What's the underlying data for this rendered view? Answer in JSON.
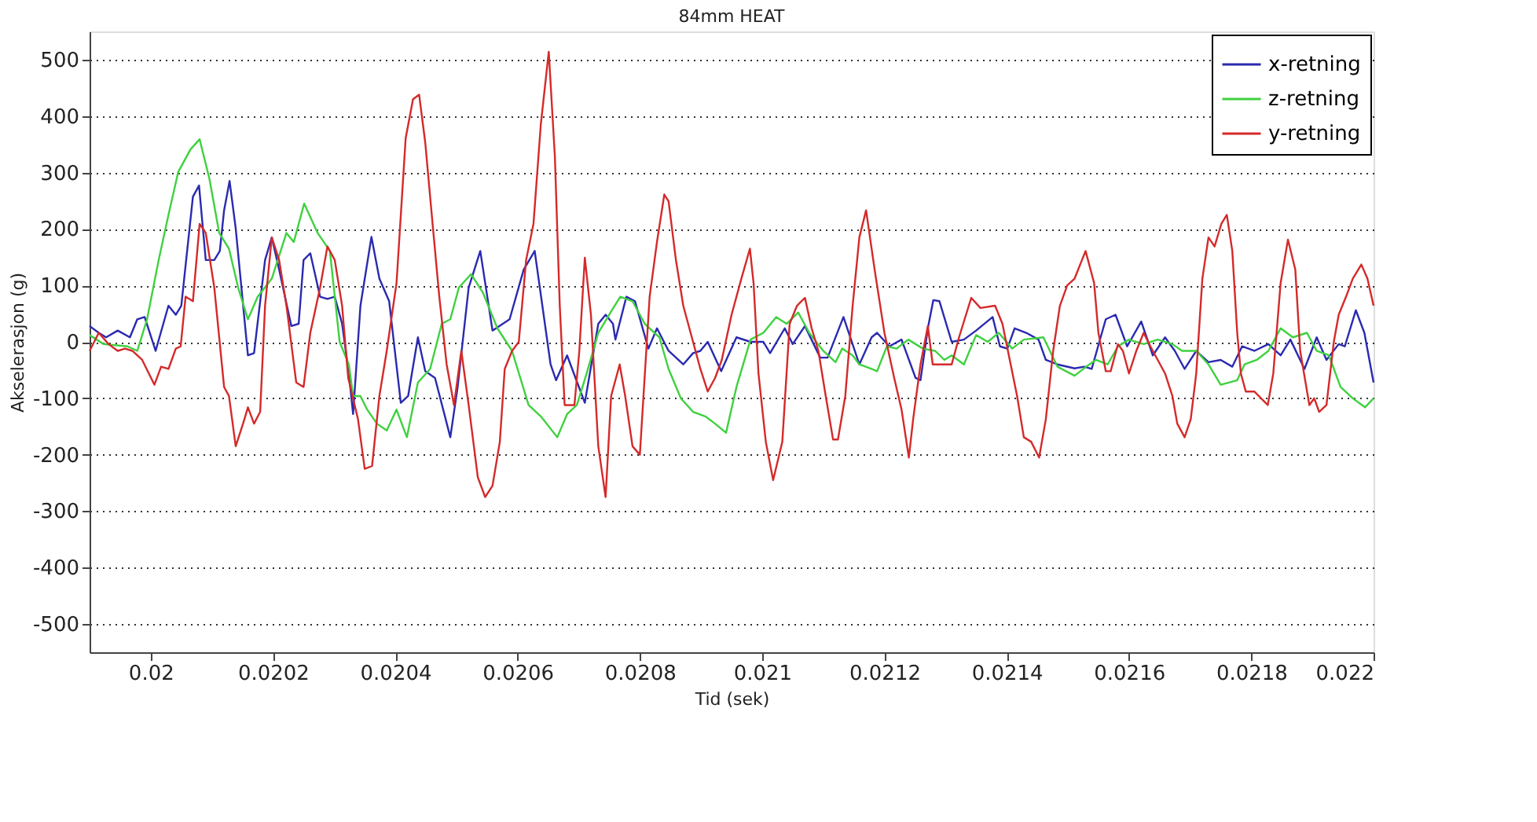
{
  "chart_data": {
    "type": "line",
    "title": "84mm HEAT",
    "xlabel": "Tid (sek)",
    "ylabel": "Akselerasjon (g)",
    "xlim": [
      0.0199,
      0.022
    ],
    "ylim": [
      -550,
      550
    ],
    "xticks": [
      0.02,
      0.0202,
      0.0204,
      0.0206,
      0.0208,
      0.021,
      0.0212,
      0.0214,
      0.0216,
      0.0218,
      0.022
    ],
    "yticks": [
      -500,
      -400,
      -300,
      -200,
      -100,
      0,
      100,
      200,
      300,
      400,
      500
    ],
    "grid": "y",
    "legend": "top right",
    "marker": "none",
    "line_style": "solid",
    "series": [
      {
        "name": "x-retning",
        "color": "#2a2ab0",
        "x": [
          0.0199,
          0.019915,
          0.019927,
          0.019946,
          0.019966,
          0.019978,
          0.01999,
          0.020008,
          0.020029,
          0.020041,
          0.02005,
          0.020069,
          0.020079,
          0.02009,
          0.020104,
          0.020113,
          0.02012,
          0.020129,
          0.020139,
          0.020159,
          0.020169,
          0.020187,
          0.020198,
          0.02021,
          0.02023,
          0.020242,
          0.02025,
          0.020261,
          0.020277,
          0.020289,
          0.020301,
          0.020313,
          0.020324,
          0.020331,
          0.020343,
          0.020361,
          0.020374,
          0.02039,
          0.020409,
          0.020421,
          0.020437,
          0.020449,
          0.020465,
          0.02049,
          0.020502,
          0.02052,
          0.020539,
          0.020559,
          0.020587,
          0.02061,
          0.020628,
          0.020654,
          0.020663,
          0.020681,
          0.02071,
          0.020732,
          0.020744,
          0.020756,
          0.02076,
          0.020778,
          0.020792,
          0.020814,
          0.020828,
          0.020847,
          0.020871,
          0.020887,
          0.020899,
          0.020911,
          0.020933,
          0.020958,
          0.020981,
          0.021002,
          0.021013,
          0.021037,
          0.02105,
          0.02107,
          0.021095,
          0.021107,
          0.021133,
          0.021159,
          0.021179,
          0.021188,
          0.021208,
          0.021228,
          0.021251,
          0.021259,
          0.021271,
          0.02128,
          0.02129,
          0.02131,
          0.02133,
          0.02135,
          0.021377,
          0.021389,
          0.021401,
          0.021413,
          0.021432,
          0.021452,
          0.021464,
          0.021483,
          0.021511,
          0.021527,
          0.021539,
          0.021562,
          0.021578,
          0.021597,
          0.02162,
          0.021639,
          0.021659,
          0.021675,
          0.021691,
          0.02171,
          0.02173,
          0.02175,
          0.021769,
          0.021785,
          0.021805,
          0.021828,
          0.021848,
          0.021864,
          0.021887,
          0.021907,
          0.021923,
          0.021943,
          0.021953,
          0.021971,
          0.021985,
          0.022
        ],
        "values": [
          28,
          16,
          8,
          20,
          8,
          40,
          44,
          -16,
          64,
          48,
          64,
          257,
          277,
          145,
          145,
          161,
          233,
          285,
          201,
          -24,
          -20,
          145,
          185,
          128,
          28,
          32,
          145,
          157,
          80,
          76,
          80,
          32,
          -56,
          -128,
          64,
          186,
          112,
          72,
          -108,
          -96,
          8,
          -52,
          -64,
          -169,
          -80,
          96,
          161,
          20,
          40,
          128,
          161,
          -40,
          -68,
          -24,
          -108,
          32,
          48,
          32,
          4,
          80,
          72,
          -12,
          24,
          -16,
          -40,
          -20,
          -16,
          0,
          -52,
          8,
          0,
          0,
          -20,
          24,
          -4,
          28,
          -28,
          -28,
          44,
          -40,
          8,
          16,
          -8,
          4,
          -64,
          -68,
          24,
          74,
          72,
          0,
          4,
          20,
          44,
          -8,
          -12,
          24,
          16,
          4,
          -32,
          -40,
          -47,
          -44,
          -48,
          40,
          48,
          -8,
          36,
          -24,
          8,
          -16,
          -48,
          -16,
          -36,
          -32,
          -44,
          -8,
          -16,
          -4,
          -24,
          4,
          -48,
          8,
          -32,
          -4,
          -8,
          56,
          16,
          -72
        ]
      },
      {
        "name": "z-retning",
        "color": "#3fd13f",
        "x": [
          0.0199,
          0.019923,
          0.019962,
          0.019978,
          0.019994,
          0.020013,
          0.020029,
          0.020045,
          0.020065,
          0.02008,
          0.020096,
          0.020112,
          0.020128,
          0.020143,
          0.020159,
          0.020175,
          0.020198,
          0.020222,
          0.020234,
          0.020251,
          0.020273,
          0.020293,
          0.020309,
          0.020324,
          0.020331,
          0.020343,
          0.020354,
          0.02037,
          0.020386,
          0.020402,
          0.020419,
          0.020437,
          0.020457,
          0.020476,
          0.02049,
          0.020504,
          0.020524,
          0.020543,
          0.020567,
          0.020591,
          0.020618,
          0.020638,
          0.020665,
          0.020681,
          0.020697,
          0.020713,
          0.020732,
          0.020752,
          0.020768,
          0.020788,
          0.020808,
          0.020832,
          0.020847,
          0.020867,
          0.020887,
          0.020907,
          0.020923,
          0.020941,
          0.020958,
          0.020981,
          0.021002,
          0.021023,
          0.02104,
          0.021059,
          0.021077,
          0.0211,
          0.02112,
          0.021131,
          0.021148,
          0.021159,
          0.021179,
          0.021188,
          0.021204,
          0.02122,
          0.021239,
          0.021263,
          0.021283,
          0.021298,
          0.02131,
          0.02133,
          0.02135,
          0.021369,
          0.021387,
          0.021409,
          0.021428,
          0.02146,
          0.021483,
          0.021511,
          0.02153,
          0.021546,
          0.021565,
          0.021582,
          0.0216,
          0.021624,
          0.021647,
          0.021671,
          0.021687,
          0.02171,
          0.02173,
          0.02175,
          0.021777,
          0.021789,
          0.021809,
          0.021828,
          0.021848,
          0.021868,
          0.021891,
          0.021907,
          0.021927,
          0.021946,
          0.021966,
          0.021986,
          0.022
        ],
        "values": [
          12,
          -4,
          -8,
          -16,
          40,
          145,
          225,
          301,
          341,
          359,
          289,
          193,
          165,
          96,
          40,
          80,
          112,
          193,
          177,
          245,
          193,
          161,
          0,
          -40,
          -96,
          -96,
          -120,
          -145,
          -157,
          -120,
          -169,
          -72,
          -48,
          32,
          40,
          96,
          120,
          88,
          24,
          -16,
          -112,
          -132,
          -169,
          -128,
          -112,
          -56,
          16,
          52,
          80,
          72,
          32,
          8,
          -48,
          -100,
          -124,
          -132,
          -145,
          -161,
          -80,
          4,
          16,
          44,
          32,
          52,
          16,
          -16,
          -36,
          -12,
          -24,
          -40,
          -48,
          -52,
          -8,
          -12,
          4,
          -12,
          -16,
          -32,
          -24,
          -40,
          12,
          0,
          16,
          -12,
          4,
          8,
          -44,
          -60,
          -44,
          -32,
          -40,
          -8,
          4,
          -4,
          4,
          -4,
          -16,
          -16,
          -40,
          -76,
          -68,
          -40,
          -32,
          -16,
          24,
          8,
          16,
          -16,
          -24,
          -80,
          -100,
          -116,
          -100
        ]
      },
      {
        "name": "y-retning",
        "color": "#d42a2a",
        "x": [
          0.0199,
          0.019915,
          0.019931,
          0.019946,
          0.019958,
          0.01997,
          0.019986,
          0.020006,
          0.020017,
          0.020029,
          0.020041,
          0.020049,
          0.020057,
          0.020069,
          0.02008,
          0.02009,
          0.020104,
          0.02012,
          0.020128,
          0.020139,
          0.020151,
          0.020159,
          0.020169,
          0.020179,
          0.020187,
          0.020198,
          0.02021,
          0.020222,
          0.020238,
          0.02025,
          0.020261,
          0.020277,
          0.020289,
          0.020301,
          0.020313,
          0.020323,
          0.020339,
          0.02035,
          0.020362,
          0.020374,
          0.020386,
          0.020402,
          0.020417,
          0.020429,
          0.020439,
          0.020449,
          0.020461,
          0.020472,
          0.020484,
          0.020496,
          0.020508,
          0.02052,
          0.020535,
          0.020547,
          0.020559,
          0.020571,
          0.020579,
          0.020591,
          0.020602,
          0.020614,
          0.020626,
          0.020638,
          0.020651,
          0.020661,
          0.020669,
          0.020677,
          0.020693,
          0.020701,
          0.02071,
          0.02072,
          0.020732,
          0.020744,
          0.020753,
          0.020767,
          0.020776,
          0.020788,
          0.0208,
          0.020816,
          0.020828,
          0.02084,
          0.020847,
          0.020859,
          0.020871,
          0.020887,
          0.020899,
          0.020911,
          0.020923,
          0.020934,
          0.02095,
          0.020966,
          0.02098,
          0.020986,
          0.020994,
          0.021006,
          0.021018,
          0.021033,
          0.021045,
          0.021057,
          0.02107,
          0.021081,
          0.021092,
          0.021104,
          0.021116,
          0.021124,
          0.021136,
          0.021148,
          0.021159,
          0.02117,
          0.021184,
          0.0212,
          0.021216,
          0.021228,
          0.02124,
          0.021247,
          0.021259,
          0.021271,
          0.021279,
          0.02131,
          0.021322,
          0.021342,
          0.021357,
          0.021381,
          0.021393,
          0.021405,
          0.021417,
          0.021428,
          0.02144,
          0.021453,
          0.021464,
          0.021476,
          0.021487,
          0.021499,
          0.021511,
          0.021529,
          0.021543,
          0.02155,
          0.021562,
          0.02157,
          0.021582,
          0.02159,
          0.0216,
          0.021612,
          0.021624,
          0.021635,
          0.021647,
          0.021659,
          0.021671,
          0.021679,
          0.021691,
          0.021701,
          0.02171,
          0.02172,
          0.02173,
          0.02174,
          0.021751,
          0.02176,
          0.021769,
          0.021777,
          0.021783,
          0.021791,
          0.021805,
          0.021827,
          0.021836,
          0.021848,
          0.02186,
          0.021872,
          0.02188,
          0.021895,
          0.021903,
          0.021911,
          0.021923,
          0.021935,
          0.021943,
          0.021955,
          0.021966,
          0.02198,
          0.02199,
          0.022
        ],
        "values": [
          -16,
          16,
          -4,
          -16,
          -12,
          -16,
          -32,
          -76,
          -44,
          -48,
          -12,
          -8,
          80,
          72,
          209,
          193,
          96,
          -80,
          -96,
          -185,
          -145,
          -116,
          -145,
          -124,
          64,
          185,
          145,
          64,
          -72,
          -80,
          16,
          96,
          169,
          145,
          64,
          -64,
          -137,
          -225,
          -220,
          -96,
          -16,
          104,
          361,
          430,
          438,
          353,
          209,
          80,
          -40,
          -112,
          -16,
          -112,
          -240,
          -275,
          -255,
          -177,
          -48,
          -16,
          0,
          145,
          209,
          385,
          514,
          329,
          64,
          -112,
          -112,
          -16,
          149,
          48,
          -185,
          -275,
          -96,
          -40,
          -96,
          -185,
          -200,
          80,
          177,
          261,
          249,
          145,
          64,
          0,
          -48,
          -88,
          -64,
          -32,
          48,
          112,
          165,
          104,
          -56,
          -177,
          -245,
          -177,
          32,
          64,
          78,
          24,
          -16,
          -96,
          -173,
          -173,
          -96,
          64,
          185,
          233,
          128,
          16,
          -64,
          -120,
          -205,
          -137,
          -40,
          28,
          -40,
          -40,
          8,
          78,
          60,
          64,
          32,
          -32,
          -96,
          -169,
          -177,
          -205,
          -137,
          -16,
          64,
          100,
          112,
          161,
          104,
          16,
          -52,
          -52,
          -4,
          -16,
          -56,
          -16,
          16,
          -8,
          -32,
          -56,
          -96,
          -145,
          -169,
          -137,
          -56,
          112,
          185,
          169,
          209,
          225,
          161,
          16,
          -56,
          -88,
          -88,
          -112,
          -56,
          104,
          181,
          128,
          -16,
          -112,
          -100,
          -124,
          -112,
          0,
          48,
          80,
          112,
          137,
          112,
          64
        ]
      }
    ]
  }
}
